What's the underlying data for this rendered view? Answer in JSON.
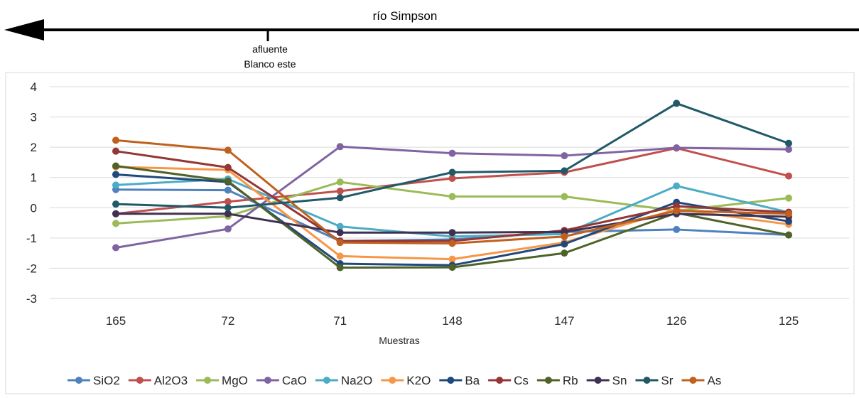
{
  "annotation": {
    "river_label": "río Simpson",
    "tributary_label_line1": "afluente",
    "tributary_label_line2": "Blanco este"
  },
  "chart_data": {
    "type": "line",
    "title": "",
    "xlabel": "Muestras",
    "ylabel": "",
    "categories": [
      "165",
      "72",
      "71",
      "148",
      "147",
      "126",
      "125"
    ],
    "ylim": [
      -3,
      4
    ],
    "yticks": [
      4,
      3,
      2,
      1,
      0,
      -1,
      -2,
      -3
    ],
    "grid": true,
    "legend": "bottom",
    "series": [
      {
        "name": "SiO2",
        "color": "#4f81bd",
        "values": [
          0.6,
          0.58,
          -1.1,
          -1.05,
          -0.8,
          -0.72,
          -0.9
        ]
      },
      {
        "name": "Al2O3",
        "color": "#c0504d",
        "values": [
          -0.2,
          0.2,
          0.55,
          0.97,
          1.17,
          1.97,
          1.05
        ]
      },
      {
        "name": "MgO",
        "color": "#9bbb59",
        "values": [
          -0.52,
          -0.28,
          0.85,
          0.37,
          0.37,
          -0.1,
          0.32
        ]
      },
      {
        "name": "CaO",
        "color": "#8064a2",
        "values": [
          -1.32,
          -0.7,
          2.02,
          1.8,
          1.72,
          1.98,
          1.93
        ]
      },
      {
        "name": "Na2O",
        "color": "#4bacc6",
        "values": [
          0.75,
          0.95,
          -0.62,
          -0.95,
          -0.87,
          0.72,
          -0.15
        ]
      },
      {
        "name": "K2O",
        "color": "#f79646",
        "values": [
          1.35,
          1.25,
          -1.6,
          -1.7,
          -1.15,
          -0.05,
          -0.55
        ]
      },
      {
        "name": "Ba",
        "color": "#1f497d",
        "values": [
          1.1,
          0.85,
          -1.85,
          -1.9,
          -1.2,
          0.18,
          -0.45
        ]
      },
      {
        "name": "Cs",
        "color": "#943634",
        "values": [
          1.87,
          1.33,
          -1.1,
          -1.1,
          -0.75,
          0.05,
          -0.15
        ]
      },
      {
        "name": "Rb",
        "color": "#4f6228",
        "values": [
          1.38,
          0.88,
          -1.98,
          -1.97,
          -1.5,
          -0.17,
          -0.9
        ]
      },
      {
        "name": "Sn",
        "color": "#3f3151",
        "values": [
          -0.2,
          -0.2,
          -0.82,
          -0.82,
          -0.8,
          -0.2,
          -0.3
        ]
      },
      {
        "name": "Sr",
        "color": "#215968",
        "values": [
          0.12,
          0.0,
          0.33,
          1.17,
          1.22,
          3.45,
          2.13
        ]
      },
      {
        "name": "As",
        "color": "#c0601e",
        "values": [
          2.23,
          1.9,
          -1.15,
          -1.18,
          -0.95,
          -0.1,
          -0.2
        ]
      }
    ]
  }
}
